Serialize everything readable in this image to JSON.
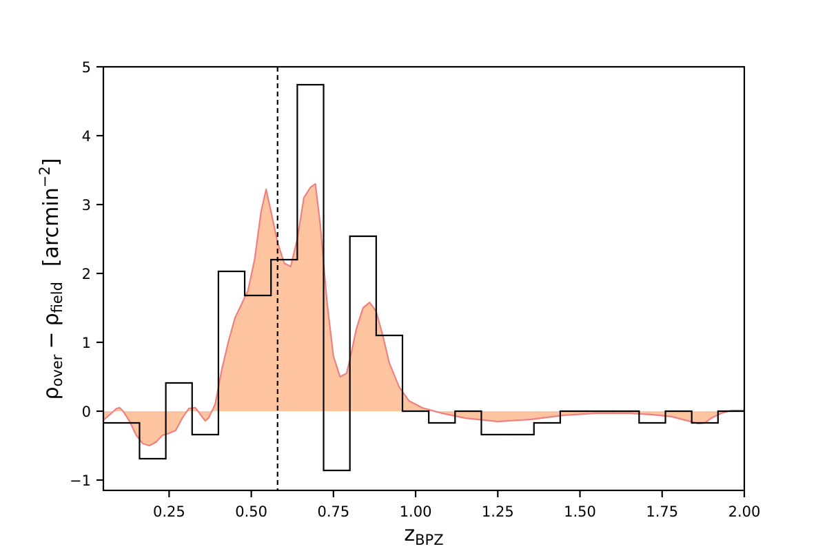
{
  "chart_data": {
    "type": "area",
    "xlim": [
      0.05,
      2.0
    ],
    "ylim": [
      -1.15,
      5.0
    ],
    "xticks": [
      0.25,
      0.5,
      0.75,
      1.0,
      1.25,
      1.5,
      1.75,
      2.0
    ],
    "xtick_labels": [
      "0.25",
      "0.50",
      "0.75",
      "1.00",
      "1.25",
      "1.50",
      "1.75",
      "2.00"
    ],
    "yticks": [
      -1,
      0,
      1,
      2,
      3,
      4,
      5
    ],
    "ytick_labels": [
      "−1",
      "0",
      "1",
      "2",
      "3",
      "4",
      "5"
    ],
    "xlabel": {
      "main": "z",
      "sub": "BPZ"
    },
    "ylabel": {
      "rho1_sub": "over",
      "minus": "−",
      "rho2_sub": "field",
      "unit_open": "[arcmin",
      "unit_exp": "−2",
      "unit_close": "]"
    },
    "reference_line_x": 0.58,
    "histogram": {
      "name": "",
      "bin_edges": [
        0.05,
        0.16,
        0.24,
        0.32,
        0.4,
        0.48,
        0.56,
        0.64,
        0.72,
        0.8,
        0.88,
        0.96,
        1.04,
        1.12,
        1.2,
        1.28,
        1.36,
        1.44,
        1.52,
        1.6,
        1.68,
        1.76,
        1.84,
        1.92,
        2.0
      ],
      "values": [
        -0.17,
        -0.69,
        0.41,
        -0.34,
        2.03,
        1.68,
        2.2,
        4.74,
        -0.86,
        2.54,
        1.1,
        0.0,
        -0.17,
        0.0,
        -0.34,
        -0.34,
        -0.17,
        0.0,
        0.0,
        0.0,
        -0.17,
        0.0,
        -0.17,
        0.0
      ]
    },
    "smoothed": {
      "name": "",
      "x": [
        0.05,
        0.07,
        0.09,
        0.1,
        0.11,
        0.13,
        0.15,
        0.17,
        0.19,
        0.21,
        0.23,
        0.25,
        0.27,
        0.29,
        0.31,
        0.33,
        0.35,
        0.36,
        0.37,
        0.39,
        0.41,
        0.43,
        0.45,
        0.47,
        0.49,
        0.51,
        0.53,
        0.545,
        0.56,
        0.58,
        0.6,
        0.62,
        0.64,
        0.66,
        0.68,
        0.695,
        0.71,
        0.73,
        0.75,
        0.77,
        0.79,
        0.8,
        0.82,
        0.84,
        0.86,
        0.88,
        0.9,
        0.92,
        0.95,
        0.98,
        1.02,
        1.08,
        1.15,
        1.25,
        1.35,
        1.45,
        1.55,
        1.65,
        1.72,
        1.78,
        1.82,
        1.86,
        1.88,
        1.9,
        1.93,
        1.96,
        2.0
      ],
      "values": [
        -0.13,
        -0.05,
        0.04,
        0.05,
        0.0,
        -0.15,
        -0.35,
        -0.47,
        -0.5,
        -0.45,
        -0.35,
        -0.32,
        -0.28,
        -0.1,
        0.04,
        0.05,
        -0.08,
        -0.14,
        -0.1,
        0.1,
        0.6,
        1.0,
        1.35,
        1.55,
        1.75,
        2.2,
        2.9,
        3.22,
        2.9,
        2.45,
        2.15,
        2.1,
        2.5,
        3.1,
        3.25,
        3.3,
        2.7,
        1.6,
        0.8,
        0.5,
        0.55,
        0.75,
        1.2,
        1.5,
        1.58,
        1.45,
        1.1,
        0.7,
        0.35,
        0.15,
        0.05,
        -0.03,
        -0.1,
        -0.15,
        -0.12,
        -0.06,
        -0.03,
        -0.03,
        -0.05,
        -0.08,
        -0.13,
        -0.18,
        -0.17,
        -0.1,
        -0.03,
        0.01,
        0.01
      ]
    },
    "colors": {
      "fill": "#fdc49f",
      "curve": "#f08080",
      "histogram": "#000000",
      "reference_line": "#000000"
    },
    "grid": false,
    "legend": "none"
  }
}
